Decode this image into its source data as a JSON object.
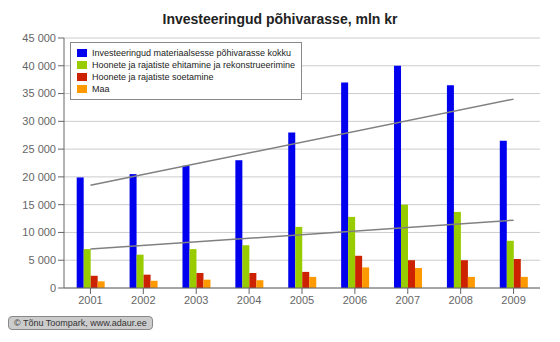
{
  "chart_data": {
    "type": "bar",
    "title": "Investeeringud põhivarasse, mln kr",
    "categories": [
      "2001",
      "2002",
      "2003",
      "2004",
      "2005",
      "2006",
      "2007",
      "2008",
      "2009"
    ],
    "series": [
      {
        "name": "Investeeringud materiaalsesse põhivarasse kokku",
        "color": "#0000EE",
        "values": [
          19900,
          20500,
          22000,
          23000,
          28000,
          37000,
          40000,
          36500,
          26500
        ]
      },
      {
        "name": "Hoonete ja rajatiste ehitamine ja rekonstrueerimine",
        "color": "#99CC00",
        "values": [
          7000,
          6000,
          7000,
          7700,
          11000,
          12800,
          15000,
          13700,
          8500
        ]
      },
      {
        "name": "Hoonete ja rajatiste soetamine",
        "color": "#CC2200",
        "values": [
          2200,
          2400,
          2700,
          2700,
          2900,
          5800,
          5000,
          5000,
          5200
        ]
      },
      {
        "name": "Maa",
        "color": "#FF9900",
        "values": [
          1200,
          1300,
          1500,
          1400,
          2000,
          3700,
          3600,
          2000,
          2000
        ]
      },
      {
        "type": "line",
        "color": "gray",
        "values": [
          18500,
          null,
          null,
          null,
          null,
          null,
          null,
          null,
          34000
        ]
      },
      {
        "type": "line",
        "color": "gray",
        "values": [
          7000,
          null,
          null,
          null,
          null,
          null,
          null,
          null,
          12200
        ]
      }
    ],
    "ylim": [
      0,
      45000
    ],
    "yticks": [
      0,
      {
        "value": 5000,
        "label": "5 000"
      },
      {
        "value": 10000,
        "label": "10 000"
      },
      {
        "value": 15000,
        "label": "15 000"
      },
      {
        "value": 20000,
        "label": "20 000"
      },
      {
        "value": 25000,
        "label": "25 000"
      },
      {
        "value": 30000,
        "label": "30 000"
      },
      {
        "value": 35000,
        "label": "35 000"
      },
      {
        "value": 40000,
        "label": "40 000"
      },
      {
        "value": 45000,
        "label": "45 000"
      }
    ],
    "grid": true,
    "legend": "upper left",
    "annotations": [
      "© Tõnu Toompark, www.adaur.ee"
    ]
  }
}
